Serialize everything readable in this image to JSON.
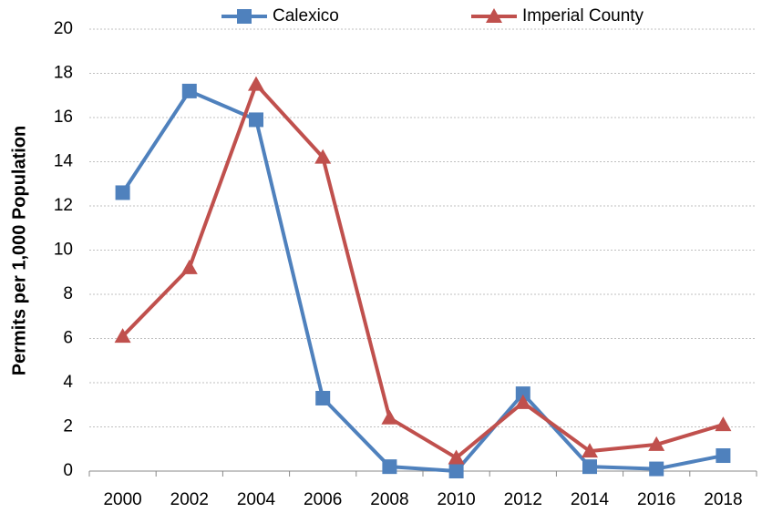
{
  "chart_data": {
    "type": "line",
    "y_label": "Permits per 1,000 Population",
    "categories": [
      "2000",
      "2002",
      "2004",
      "2006",
      "2008",
      "2010",
      "2012",
      "2014",
      "2016",
      "2018"
    ],
    "series": [
      {
        "name": "Calexico",
        "color": "#4f81bd",
        "marker": "square",
        "values": [
          12.6,
          17.2,
          15.9,
          3.3,
          0.2,
          0,
          3.5,
          0.2,
          0.1,
          0.7
        ]
      },
      {
        "name": "Imperial County",
        "color": "#c0504d",
        "marker": "triangle",
        "values": [
          6.1,
          9.2,
          17.5,
          14.2,
          2.4,
          0.6,
          3.1,
          0.9,
          1.2,
          2.1
        ]
      }
    ],
    "ylim": [
      0,
      20
    ],
    "yticks": [
      0,
      2,
      4,
      6,
      8,
      10,
      12,
      14,
      16,
      18,
      20
    ],
    "grid": true,
    "legend": "top"
  }
}
